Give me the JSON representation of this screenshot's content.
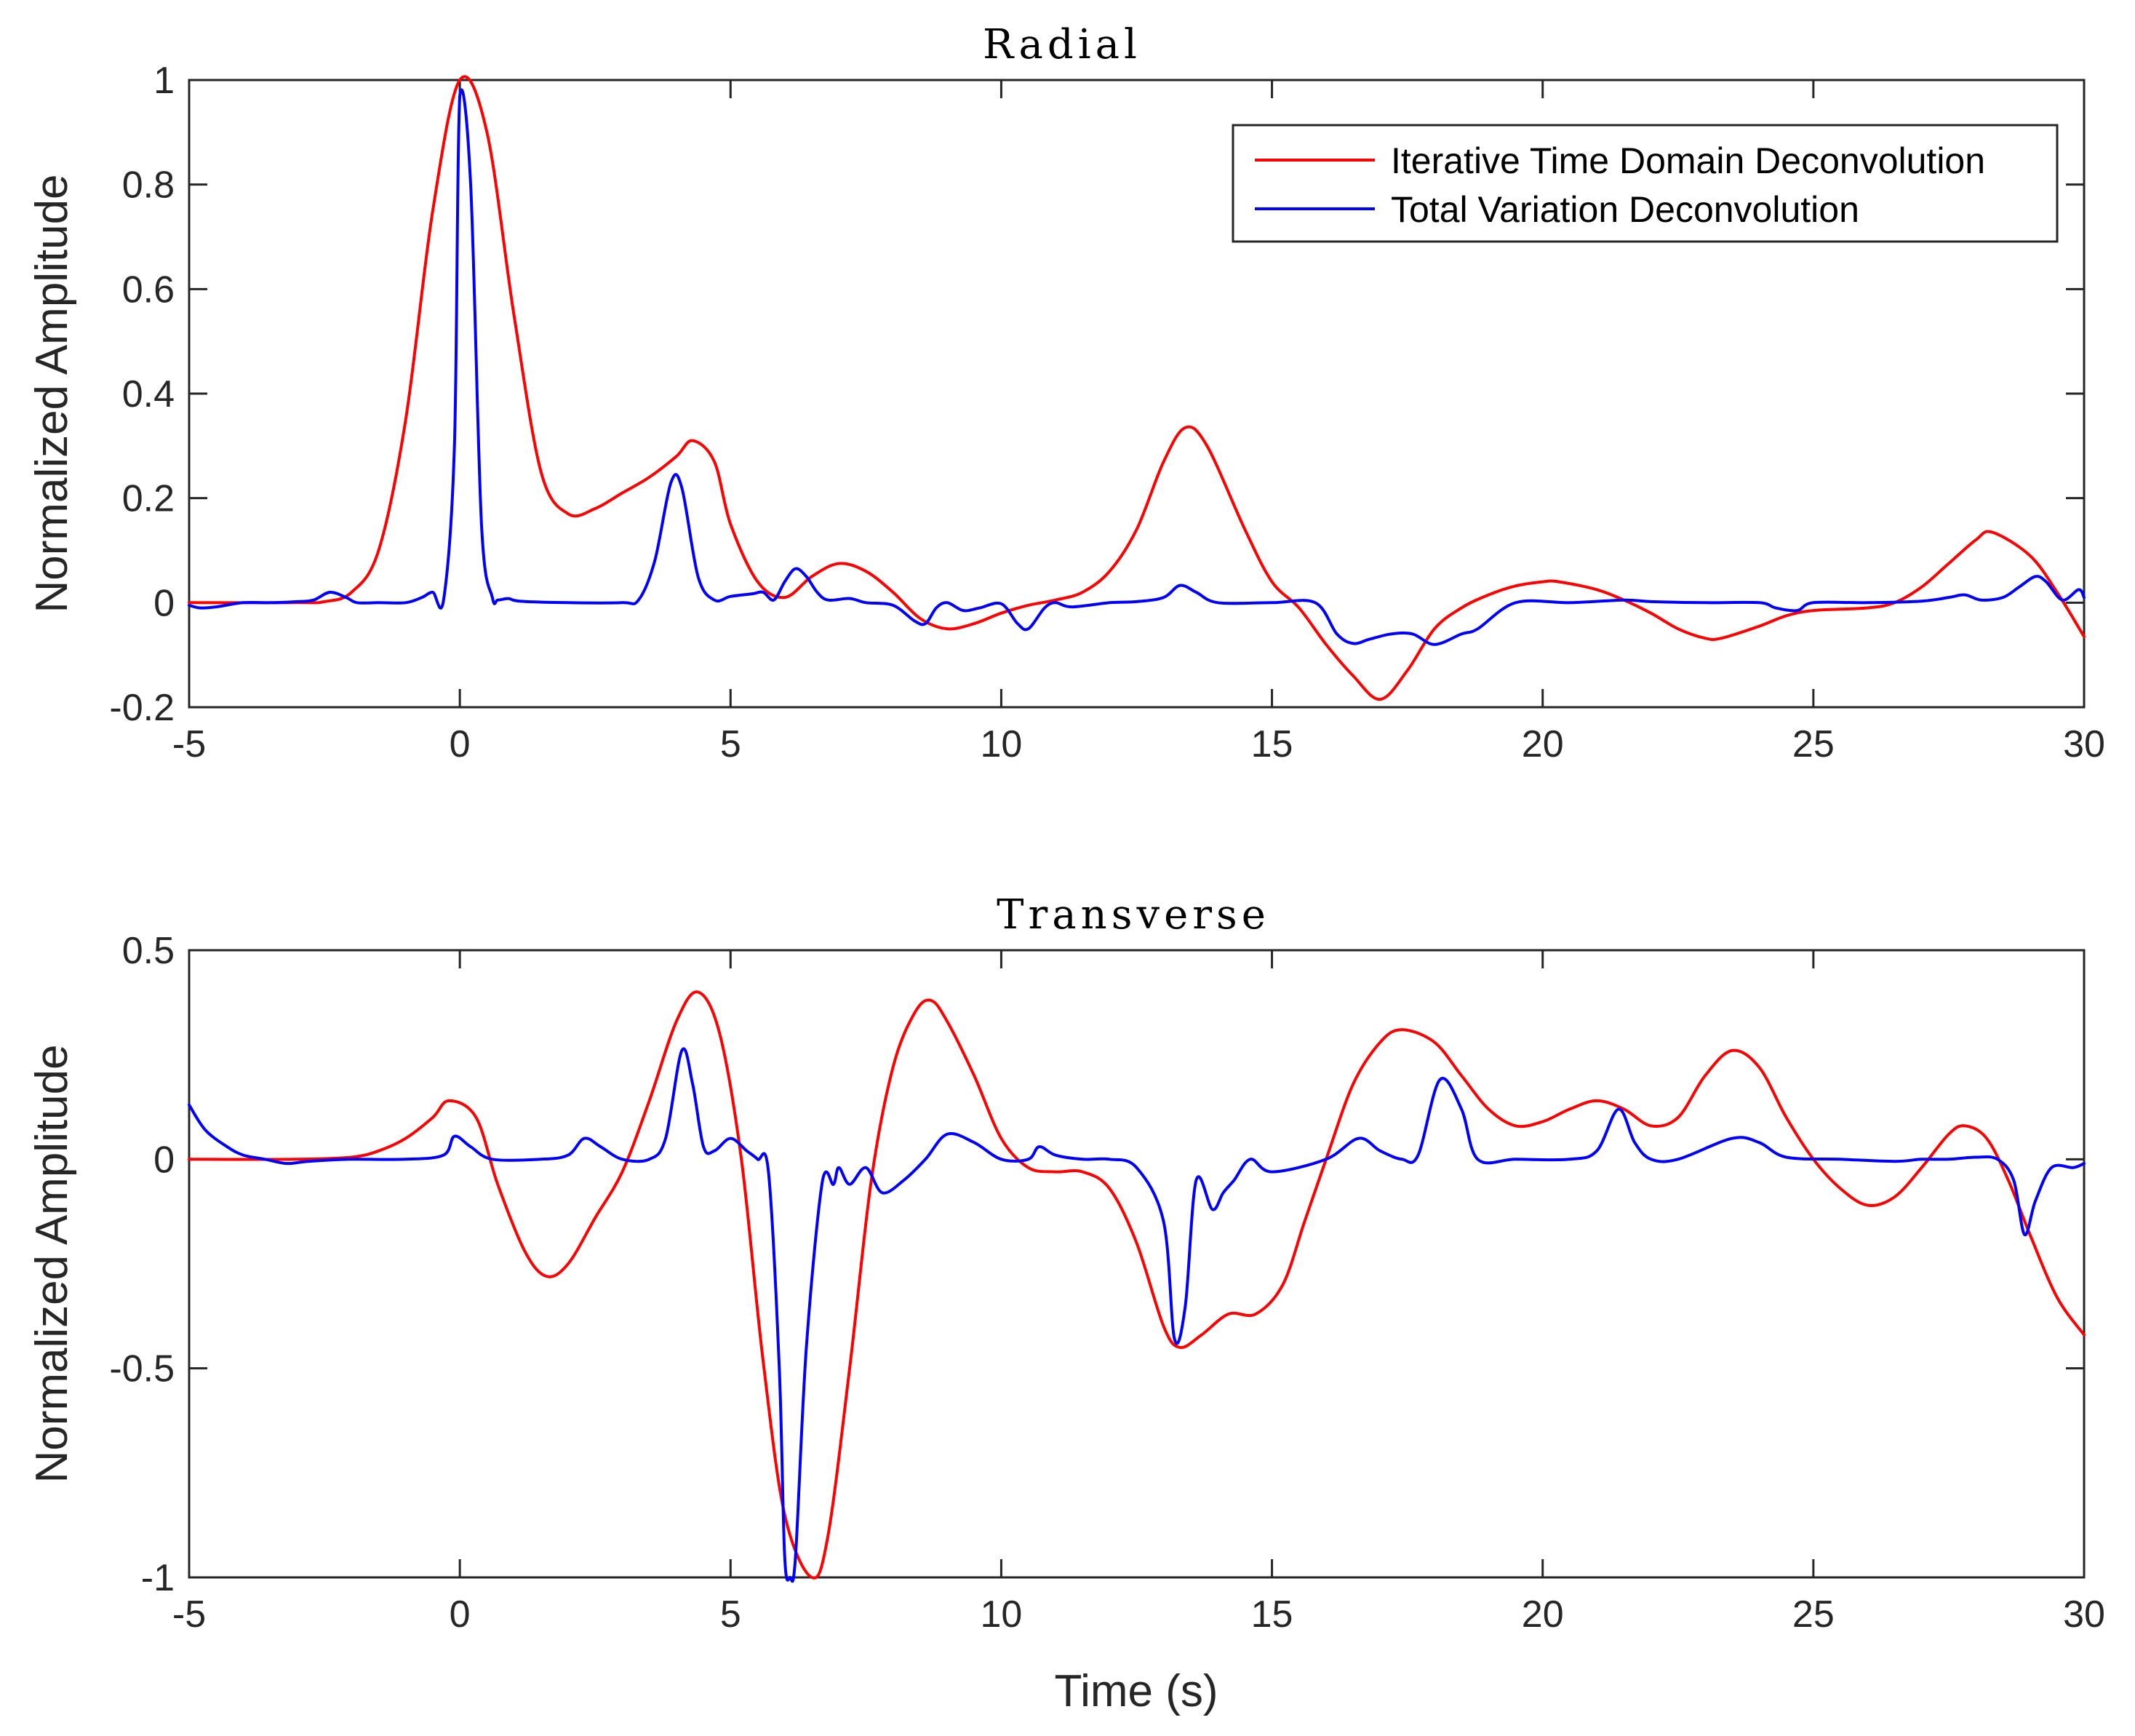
{
  "colors": {
    "itd": "#ff0000",
    "tv": "#0000ff",
    "axis": "#262626"
  },
  "legend": {
    "entries": [
      "Iterative Time Domain Deconvolution",
      "Total Variation Deconvolution"
    ],
    "placement": "top-right"
  },
  "xlabel": "Time (s)",
  "chart_data": [
    {
      "type": "line",
      "title": "Radial",
      "xlabel": "",
      "ylabel": "Normalized Amplitude",
      "xlim": [
        -5,
        30
      ],
      "ylim": [
        -0.2,
        1
      ],
      "xticks": [
        -5,
        0,
        5,
        10,
        15,
        20,
        25,
        30
      ],
      "yticks": [
        -0.2,
        0,
        0.2,
        0.4,
        0.6,
        0.8,
        1
      ],
      "ytick_labels": [
        "-0.2",
        "0",
        "0.2",
        "0.4",
        "0.6",
        "0.8",
        "1"
      ],
      "series": [
        {
          "name": "Iterative Time Domain Deconvolution",
          "color": "#ff0000",
          "x": [
            -5,
            -3,
            -2.5,
            -2,
            -1.5,
            -1,
            -0.5,
            0,
            0.5,
            1,
            1.5,
            2,
            2.5,
            3,
            3.5,
            4,
            4.3,
            4.7,
            5,
            5.5,
            6,
            6.5,
            7,
            7.5,
            8,
            8.5,
            9,
            9.5,
            10,
            10.5,
            11,
            11.5,
            12,
            12.5,
            13,
            13.4,
            13.8,
            14.5,
            15,
            15.5,
            16,
            16.5,
            17,
            17.5,
            18,
            18.5,
            19,
            19.5,
            20,
            20.3,
            21,
            21.5,
            22,
            22.5,
            23,
            23.3,
            24,
            24.5,
            25,
            26,
            26.5,
            27,
            27.5,
            28,
            28.3,
            29,
            29.5,
            30
          ],
          "y": [
            0,
            0,
            0.002,
            0.02,
            0.1,
            0.35,
            0.75,
            1.0,
            0.9,
            0.55,
            0.25,
            0.17,
            0.18,
            0.21,
            0.24,
            0.28,
            0.31,
            0.27,
            0.15,
            0.04,
            0.01,
            0.05,
            0.075,
            0.06,
            0.02,
            -0.03,
            -0.05,
            -0.04,
            -0.02,
            -0.005,
            0.005,
            0.02,
            0.06,
            0.14,
            0.27,
            0.335,
            0.3,
            0.14,
            0.04,
            -0.01,
            -0.08,
            -0.14,
            -0.185,
            -0.13,
            -0.05,
            -0.01,
            0.015,
            0.032,
            0.04,
            0.04,
            0.025,
            0.005,
            -0.02,
            -0.05,
            -0.068,
            -0.068,
            -0.045,
            -0.025,
            -0.015,
            -0.01,
            0.0,
            0.03,
            0.075,
            0.12,
            0.135,
            0.09,
            0.02,
            -0.065
          ]
        },
        {
          "name": "Total Variation Deconvolution",
          "color": "#0000ff",
          "x": [
            -5,
            -4.8,
            -4.5,
            -4,
            -3.5,
            -3,
            -2.7,
            -2.4,
            -2.1,
            -1.9,
            -1.5,
            -1,
            -0.7,
            -0.5,
            -0.3,
            -0.1,
            0,
            0.2,
            0.4,
            0.6,
            0.7,
            0.9,
            1.1,
            2,
            3,
            3.3,
            3.6,
            3.9,
            4.1,
            4.4,
            4.7,
            5.0,
            5.4,
            5.6,
            5.8,
            6.0,
            6.2,
            6.4,
            6.6,
            6.8,
            7.2,
            7.5,
            8.0,
            8.4,
            8.6,
            8.8,
            9.0,
            9.3,
            9.6,
            10.0,
            10.3,
            10.5,
            10.8,
            11.0,
            11.3,
            12,
            12.5,
            13,
            13.3,
            13.6,
            14,
            15,
            15.8,
            16.2,
            16.5,
            16.8,
            17.2,
            17.6,
            18,
            18.5,
            18.8,
            19.5,
            20.5,
            21.5,
            22,
            23,
            24,
            24.3,
            24.7,
            25,
            26,
            27,
            27.5,
            27.8,
            28.1,
            28.5,
            28.8,
            29.1,
            29.3,
            29.6,
            29.9,
            30
          ],
          "y": [
            -0.005,
            -0.01,
            -0.008,
            0.0,
            0.0,
            0.002,
            0.005,
            0.02,
            0.01,
            0.0,
            0.0,
            0.0,
            0.01,
            0.02,
            0.005,
            0.3,
            0.97,
            0.8,
            0.15,
            0.01,
            0.005,
            0.008,
            0.003,
            0.0,
            0.0,
            0.005,
            0.08,
            0.23,
            0.22,
            0.05,
            0.005,
            0.012,
            0.017,
            0.02,
            0.005,
            0.04,
            0.065,
            0.05,
            0.02,
            0.005,
            0.008,
            0.0,
            -0.005,
            -0.035,
            -0.04,
            -0.01,
            0.0,
            -0.015,
            -0.01,
            -0.002,
            -0.04,
            -0.05,
            -0.01,
            0.0,
            -0.008,
            0.0,
            0.002,
            0.01,
            0.033,
            0.02,
            0.0,
            0.0,
            0.0,
            -0.06,
            -0.078,
            -0.07,
            -0.06,
            -0.06,
            -0.08,
            -0.06,
            -0.05,
            0.0,
            0.0,
            0.005,
            0.002,
            0.0,
            0.0,
            -0.01,
            -0.015,
            0.0,
            0.0,
            0.003,
            0.01,
            0.015,
            0.005,
            0.01,
            0.03,
            0.05,
            0.04,
            0.005,
            0.025,
            0.01
          ]
        }
      ]
    },
    {
      "type": "line",
      "title": "Transverse",
      "xlabel": "Time (s)",
      "ylabel": "Normalized Amplitude",
      "xlim": [
        -5,
        30
      ],
      "ylim": [
        -1,
        0.5
      ],
      "xticks": [
        -5,
        0,
        5,
        10,
        15,
        20,
        25,
        30
      ],
      "yticks": [
        -1,
        -0.5,
        0,
        0.5
      ],
      "ytick_labels": [
        "-1",
        "-0.5",
        "0",
        "0.5"
      ],
      "series": [
        {
          "name": "Iterative Time Domain Deconvolution",
          "color": "#ff0000",
          "x": [
            -5,
            -3,
            -2,
            -1.5,
            -1,
            -0.5,
            -0.2,
            0.3,
            0.7,
            1.2,
            1.6,
            2.0,
            2.5,
            3.0,
            3.5,
            4.0,
            4.4,
            4.8,
            5.2,
            5.6,
            6.0,
            6.5,
            6.8,
            7.2,
            7.6,
            8.0,
            8.4,
            8.7,
            9.0,
            9.5,
            10,
            10.5,
            11,
            11.5,
            12,
            12.5,
            13,
            13.3,
            13.7,
            14.2,
            14.7,
            15.2,
            15.6,
            16,
            16.5,
            17,
            17.4,
            18,
            18.5,
            19,
            19.5,
            20,
            20.5,
            21,
            21.5,
            22,
            22.5,
            23,
            23.5,
            24,
            24.5,
            25,
            25.5,
            26,
            26.5,
            27,
            27.5,
            27.8,
            28.2,
            28.6,
            29,
            29.5,
            30
          ],
          "y": [
            0,
            0,
            0.005,
            0.02,
            0.05,
            0.1,
            0.14,
            0.1,
            -0.06,
            -0.22,
            -0.28,
            -0.25,
            -0.14,
            -0.03,
            0.14,
            0.33,
            0.4,
            0.3,
            0.0,
            -0.48,
            -0.85,
            -1.0,
            -0.9,
            -0.5,
            -0.05,
            0.22,
            0.35,
            0.38,
            0.33,
            0.2,
            0.05,
            -0.02,
            -0.03,
            -0.03,
            -0.07,
            -0.2,
            -0.4,
            -0.45,
            -0.42,
            -0.37,
            -0.37,
            -0.3,
            -0.15,
            0.0,
            0.18,
            0.28,
            0.31,
            0.28,
            0.2,
            0.12,
            0.08,
            0.09,
            0.12,
            0.14,
            0.12,
            0.08,
            0.1,
            0.2,
            0.26,
            0.22,
            0.1,
            0.0,
            -0.07,
            -0.11,
            -0.09,
            -0.02,
            0.06,
            0.08,
            0.05,
            -0.05,
            -0.18,
            -0.33,
            -0.42
          ]
        },
        {
          "name": "Total Variation Deconvolution",
          "color": "#0000ff",
          "x": [
            -5,
            -4.7,
            -4.3,
            -4,
            -3.6,
            -3.2,
            -2.8,
            -2,
            -1,
            -0.3,
            -0.1,
            0.2,
            0.6,
            1.5,
            2.0,
            2.3,
            2.6,
            3.0,
            3.5,
            3.8,
            4.1,
            4.3,
            4.5,
            4.7,
            5.0,
            5.3,
            5.5,
            5.7,
            5.9,
            6.0,
            6.1,
            6.2,
            6.4,
            6.7,
            6.9,
            7.0,
            7.2,
            7.5,
            7.8,
            8.2,
            8.6,
            9.0,
            9.5,
            10.0,
            10.5,
            10.7,
            11.0,
            11.5,
            12.0,
            12.5,
            13.0,
            13.2,
            13.4,
            13.6,
            13.9,
            14.1,
            14.3,
            14.6,
            15.0,
            16.0,
            16.6,
            17.0,
            17.4,
            17.7,
            18.1,
            18.5,
            18.8,
            19.5,
            20.5,
            21.0,
            21.4,
            21.7,
            22.0,
            22.5,
            23.5,
            24.0,
            24.5,
            25.5,
            26.5,
            27.0,
            27.5,
            28.0,
            28.4,
            28.7,
            28.9,
            29.1,
            29.4,
            29.8,
            30
          ],
          "y": [
            0.13,
            0.07,
            0.03,
            0.01,
            0.0,
            -0.01,
            -0.005,
            0.0,
            0.0,
            0.01,
            0.055,
            0.03,
            0.0,
            0.0,
            0.01,
            0.05,
            0.03,
            0.0,
            0.0,
            0.05,
            0.26,
            0.18,
            0.03,
            0.02,
            0.05,
            0.02,
            0.0,
            -0.03,
            -0.5,
            -0.95,
            -1.0,
            -0.95,
            -0.45,
            -0.05,
            -0.06,
            -0.02,
            -0.06,
            -0.02,
            -0.08,
            -0.05,
            0.0,
            0.06,
            0.04,
            0.0,
            0.0,
            0.03,
            0.01,
            0.0,
            0.0,
            -0.02,
            -0.15,
            -0.43,
            -0.35,
            -0.05,
            -0.12,
            -0.08,
            -0.05,
            0.0,
            -0.03,
            0.0,
            0.05,
            0.02,
            0.0,
            0.01,
            0.19,
            0.12,
            0.0,
            0.0,
            0.0,
            0.02,
            0.12,
            0.04,
            0.0,
            0.0,
            0.05,
            0.04,
            0.005,
            0.0,
            -0.005,
            0.0,
            0.0,
            0.005,
            0.0,
            -0.05,
            -0.18,
            -0.1,
            -0.02,
            -0.02,
            -0.01
          ]
        }
      ]
    }
  ]
}
